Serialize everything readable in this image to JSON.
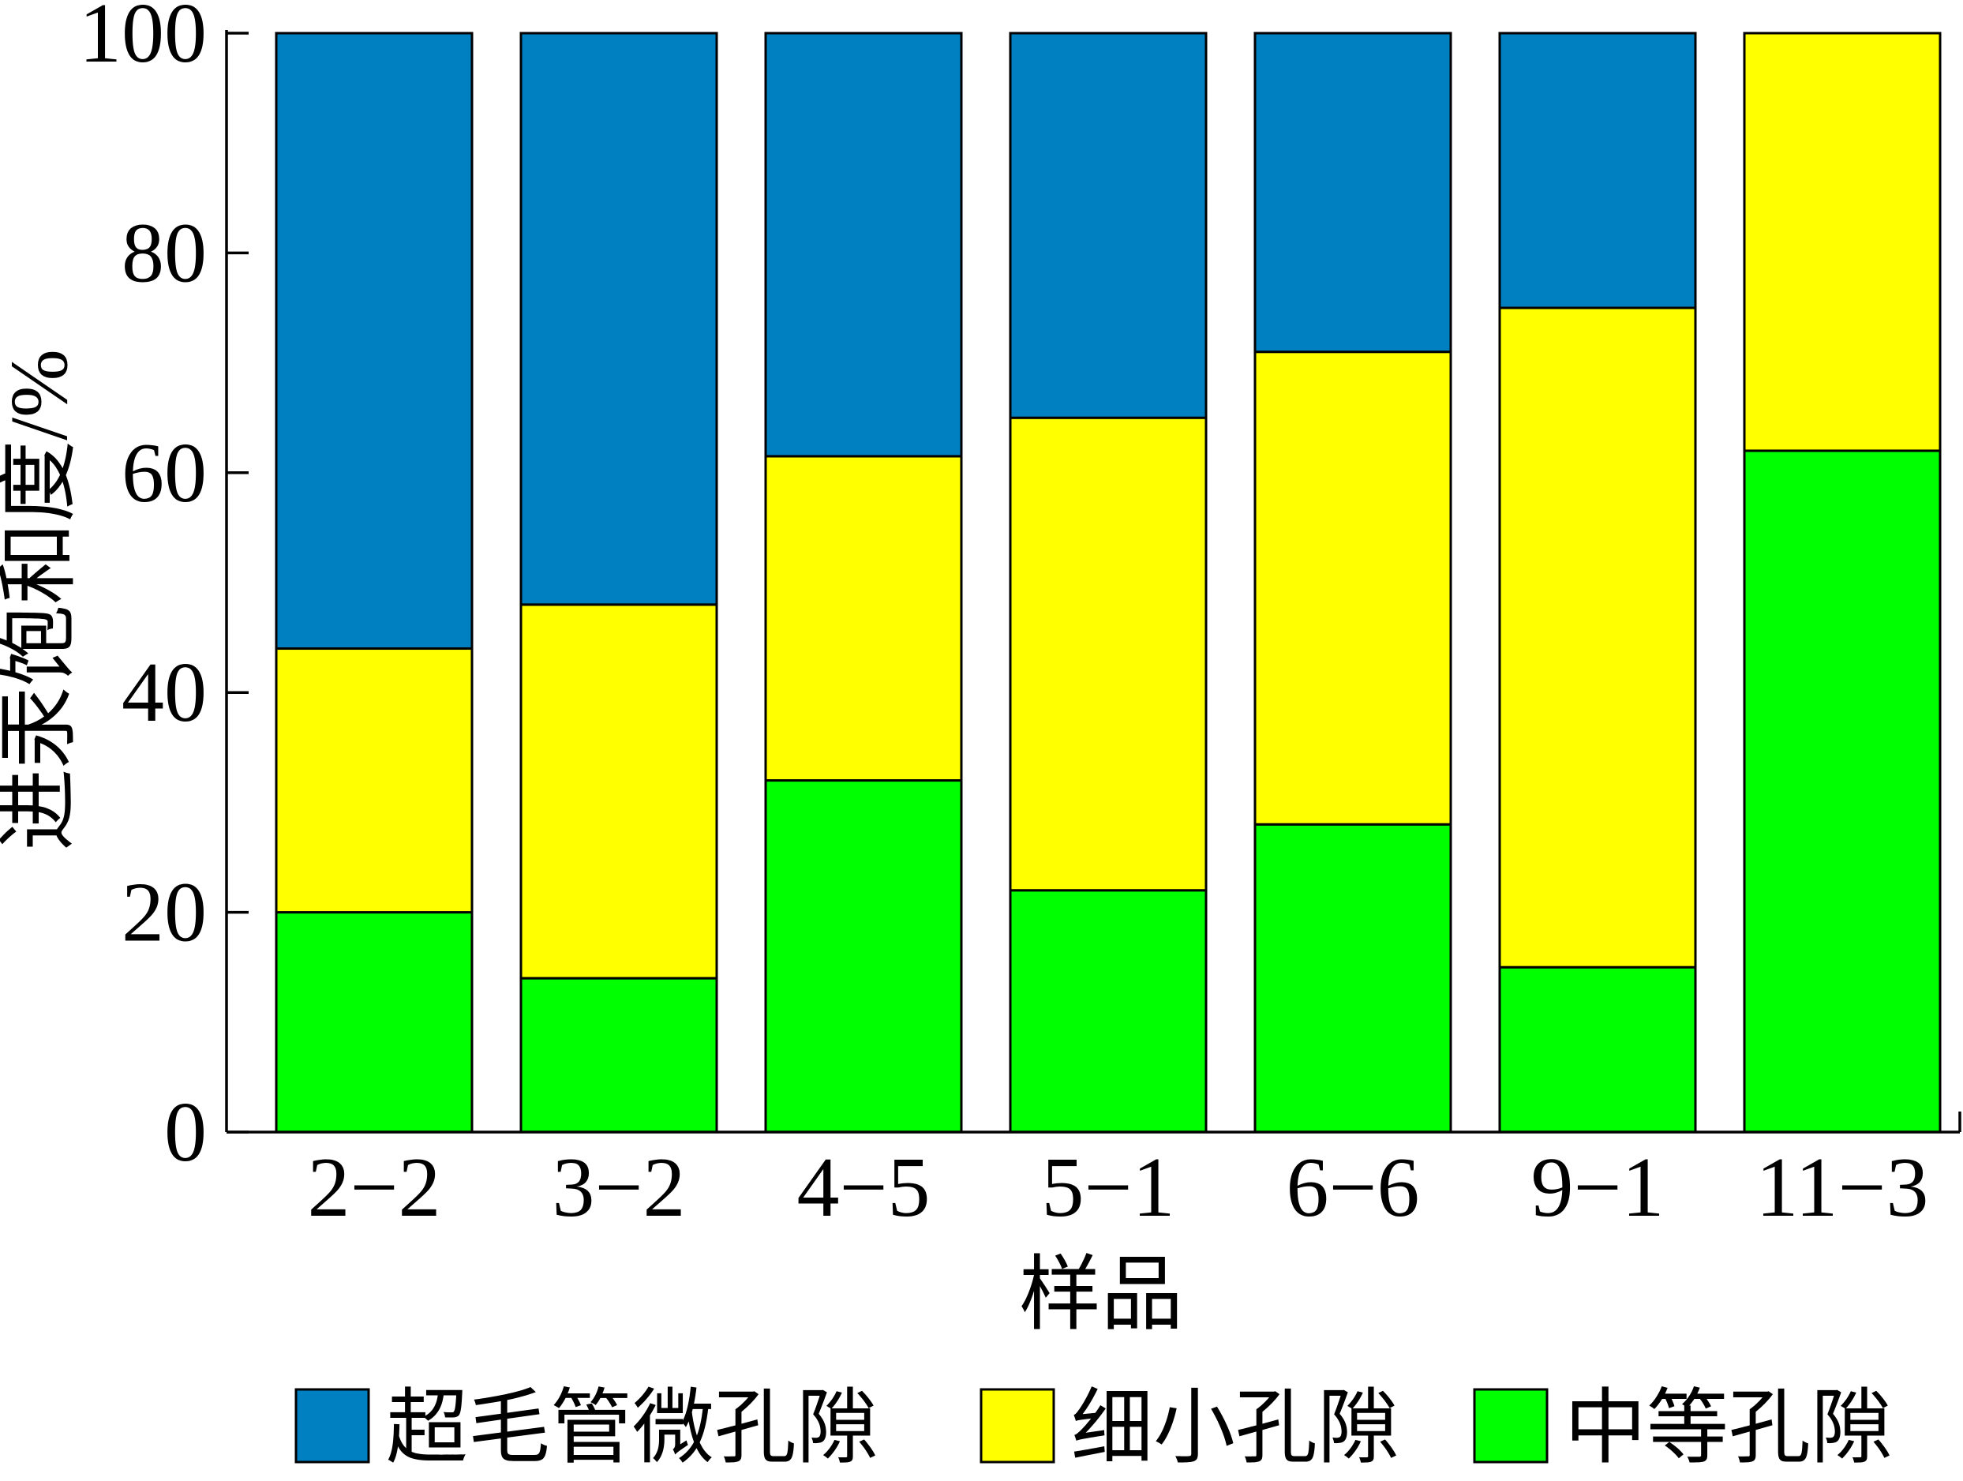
{
  "chart_data": {
    "type": "bar",
    "stacked": true,
    "xlabel": "样品",
    "ylabel": "进汞饱和度/%",
    "ylim": [
      0,
      100
    ],
    "yticks": [
      "0",
      "20",
      "40",
      "60",
      "80",
      "100"
    ],
    "categories": [
      "2−2",
      "3−2",
      "4−5",
      "5−1",
      "6−6",
      "9−1",
      "11−3"
    ],
    "series": [
      {
        "name": "中等孔隙",
        "color": "#00ff00",
        "values": [
          20,
          14,
          32,
          22,
          28,
          15,
          62
        ]
      },
      {
        "name": "细小孔隙",
        "color": "#ffff00",
        "values": [
          24,
          34,
          29.5,
          43,
          43,
          60,
          38
        ]
      },
      {
        "name": "超毛管微孔隙",
        "color": "#0080c0",
        "values": [
          56,
          52,
          38.5,
          35,
          29,
          25,
          0
        ]
      }
    ],
    "legend": {
      "placement": "bottom",
      "order": [
        "超毛管微孔隙",
        "细小孔隙",
        "中等孔隙"
      ]
    },
    "grid": false
  }
}
